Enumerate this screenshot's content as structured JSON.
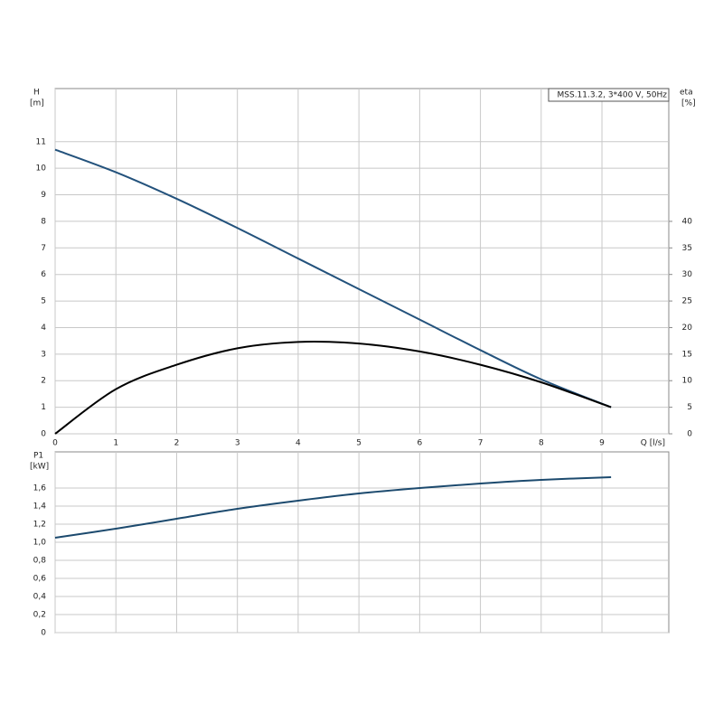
{
  "chart_data": [
    {
      "type": "line",
      "label_box": "MSS.11.3.2, 3*400 V, 50Hz",
      "y_label": "H",
      "y_unit": "[m]",
      "y2_label": "eta",
      "y2_unit": "[%]",
      "x_label": "Q [l/s]",
      "xlim": [
        0,
        10.1
      ],
      "xticks": [
        0,
        1,
        2,
        3,
        4,
        5,
        6,
        7,
        8,
        9
      ],
      "ylim": [
        0,
        13
      ],
      "yticks": [
        0,
        1,
        2,
        3,
        4,
        5,
        6,
        7,
        8,
        9,
        10,
        11
      ],
      "y2lim": [
        0,
        65
      ],
      "y2ticks": [
        0,
        5,
        10,
        15,
        20,
        25,
        30,
        35,
        40
      ],
      "grid": true,
      "series": [
        {
          "name": "H",
          "color": "#23527c",
          "x": [
            0,
            1,
            2,
            3,
            4,
            5,
            6,
            7,
            8,
            9.15
          ],
          "values": [
            10.7,
            9.85,
            8.85,
            7.75,
            6.6,
            5.45,
            4.3,
            3.15,
            2.05,
            1.0
          ]
        },
        {
          "name": "eta",
          "color": "#000000",
          "axis": "y2",
          "x": [
            0,
            1,
            2,
            3,
            4,
            5,
            6,
            7,
            8,
            9.15
          ],
          "values": [
            0,
            8.4,
            13,
            16.1,
            17.3,
            17,
            15.5,
            13,
            9.7,
            5
          ]
        }
      ]
    },
    {
      "type": "line",
      "y_label": "P1",
      "y_unit": "[kW]",
      "xlim": [
        0,
        10.1
      ],
      "xticks": [
        0,
        1,
        2,
        3,
        4,
        5,
        6,
        7,
        8,
        9
      ],
      "ylim": [
        0,
        2.0
      ],
      "yticks": [
        0,
        {
          "value": 0.2,
          "label": "0,2"
        },
        {
          "value": 0.4,
          "label": "0,4"
        },
        {
          "value": 0.6,
          "label": "0,6"
        },
        {
          "value": 0.8,
          "label": "0,8"
        },
        {
          "value": 1.0,
          "label": "1,0"
        },
        {
          "value": 1.2,
          "label": "1,2"
        },
        {
          "value": 1.4,
          "label": "1,4"
        },
        {
          "value": 1.6,
          "label": "1,6"
        }
      ],
      "grid": true,
      "series": [
        {
          "name": "P1",
          "color": "#1c4a6e",
          "x": [
            0,
            1,
            2,
            3,
            4,
            5,
            6,
            7,
            8,
            9.15
          ],
          "values": [
            1.05,
            1.15,
            1.26,
            1.37,
            1.46,
            1.54,
            1.6,
            1.65,
            1.69,
            1.72
          ]
        }
      ]
    }
  ]
}
